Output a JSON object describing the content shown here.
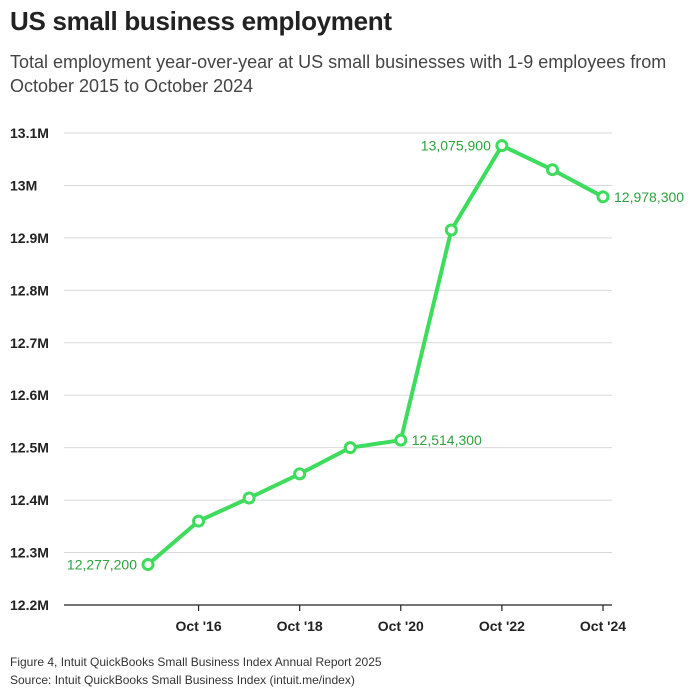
{
  "title": "US small business employment",
  "subtitle": "Total employment year-over-year at US small businesses with 1-9 employees from October 2015 to October 2024",
  "footer": {
    "figure": "Figure 4, Intuit QuickBooks Small Business Index Annual Report 2025",
    "source": "Source: Intuit QuickBooks Small Business Index (intuit.me/index)"
  },
  "colors": {
    "line": "#3ddc5c",
    "label": "#2ca33f",
    "grid": "#d9d9d9",
    "axis": "#222222"
  },
  "chart_data": {
    "type": "line",
    "title": "US small business employment",
    "x": [
      2015,
      2016,
      2017,
      2018,
      2019,
      2020,
      2021,
      2022,
      2023,
      2024
    ],
    "series": [
      {
        "values": [
          12277200,
          12360000,
          12404000,
          12450000,
          12500000,
          12514300,
          12915000,
          13075900,
          13030000,
          12978300
        ]
      }
    ],
    "ylim": [
      12200000,
      13100000
    ],
    "yticks": [
      {
        "value": 13100000,
        "label": "13.1M"
      },
      {
        "value": 13000000,
        "label": "13M"
      },
      {
        "value": 12900000,
        "label": "12.9M"
      },
      {
        "value": 12800000,
        "label": "12.8M"
      },
      {
        "value": 12700000,
        "label": "12.7M"
      },
      {
        "value": 12600000,
        "label": "12.6M"
      },
      {
        "value": 12500000,
        "label": "12.5M"
      },
      {
        "value": 12400000,
        "label": "12.4M"
      },
      {
        "value": 12300000,
        "label": "12.3M"
      },
      {
        "value": 12200000,
        "label": "12.2M"
      }
    ],
    "xticks": [
      {
        "value": 2016,
        "label": "Oct '16"
      },
      {
        "value": 2018,
        "label": "Oct '18"
      },
      {
        "value": 2020,
        "label": "Oct '20"
      },
      {
        "value": 2022,
        "label": "Oct '22"
      },
      {
        "value": 2024,
        "label": "Oct '24"
      }
    ],
    "annotations": [
      {
        "x": 2015,
        "label": "12,277,200",
        "position": "left"
      },
      {
        "x": 2020,
        "label": "12,514,300",
        "position": "right"
      },
      {
        "x": 2022,
        "label": "13,075,900",
        "position": "left"
      },
      {
        "x": 2024,
        "label": "12,978,300",
        "position": "right"
      }
    ],
    "grid": true
  }
}
